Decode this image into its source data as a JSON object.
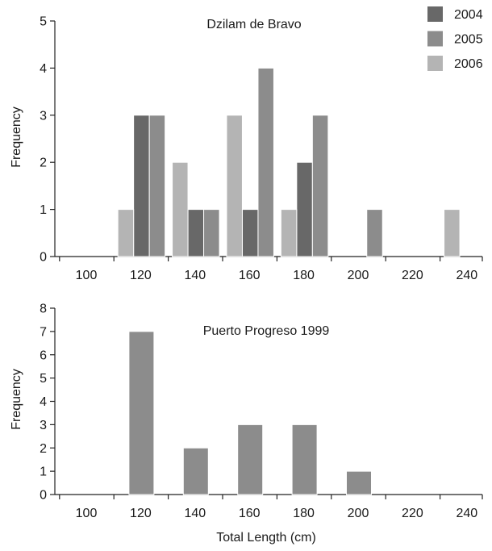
{
  "chart_data": [
    {
      "type": "bar",
      "title": "Dzilam de Bravo",
      "xlabel": "",
      "ylabel": "Frequency",
      "xlim": [
        100,
        240
      ],
      "x_ticks": [
        100,
        120,
        140,
        160,
        180,
        200,
        220,
        240
      ],
      "ylim": [
        0,
        5
      ],
      "y_ticks": [
        0,
        1,
        2,
        3,
        4,
        5
      ],
      "legend_position": "top-right",
      "series": [
        {
          "name": "2004",
          "color": "#686868",
          "points": [
            {
              "x": 120,
              "y": 3
            },
            {
              "x": 140,
              "y": 1
            },
            {
              "x": 160,
              "y": 1
            },
            {
              "x": 180,
              "y": 2
            }
          ]
        },
        {
          "name": "2005",
          "color": "#8c8c8c",
          "points": [
            {
              "x": 120,
              "y": 3
            },
            {
              "x": 140,
              "y": 1
            },
            {
              "x": 160,
              "y": 4
            },
            {
              "x": 180,
              "y": 3
            },
            {
              "x": 200,
              "y": 1
            }
          ]
        },
        {
          "name": "2006",
          "color": "#b4b4b4",
          "points": [
            {
              "x": 120,
              "y": 1
            },
            {
              "x": 140,
              "y": 2
            },
            {
              "x": 160,
              "y": 3
            },
            {
              "x": 180,
              "y": 1
            },
            {
              "x": 240,
              "y": 1
            }
          ]
        }
      ]
    },
    {
      "type": "bar",
      "title": "Puerto Progreso 1999",
      "xlabel": "Total Length (cm)",
      "ylabel": "Frequency",
      "xlim": [
        100,
        240
      ],
      "x_ticks": [
        100,
        120,
        140,
        160,
        180,
        200,
        220,
        240
      ],
      "ylim": [
        0,
        8
      ],
      "y_ticks": [
        0,
        1,
        2,
        3,
        4,
        5,
        6,
        7,
        8
      ],
      "series": [
        {
          "name": "",
          "color": "#8c8c8c",
          "points": [
            {
              "x": 120,
              "y": 7
            },
            {
              "x": 140,
              "y": 2
            },
            {
              "x": 160,
              "y": 3
            },
            {
              "x": 180,
              "y": 3
            },
            {
              "x": 200,
              "y": 1
            }
          ]
        }
      ]
    }
  ]
}
